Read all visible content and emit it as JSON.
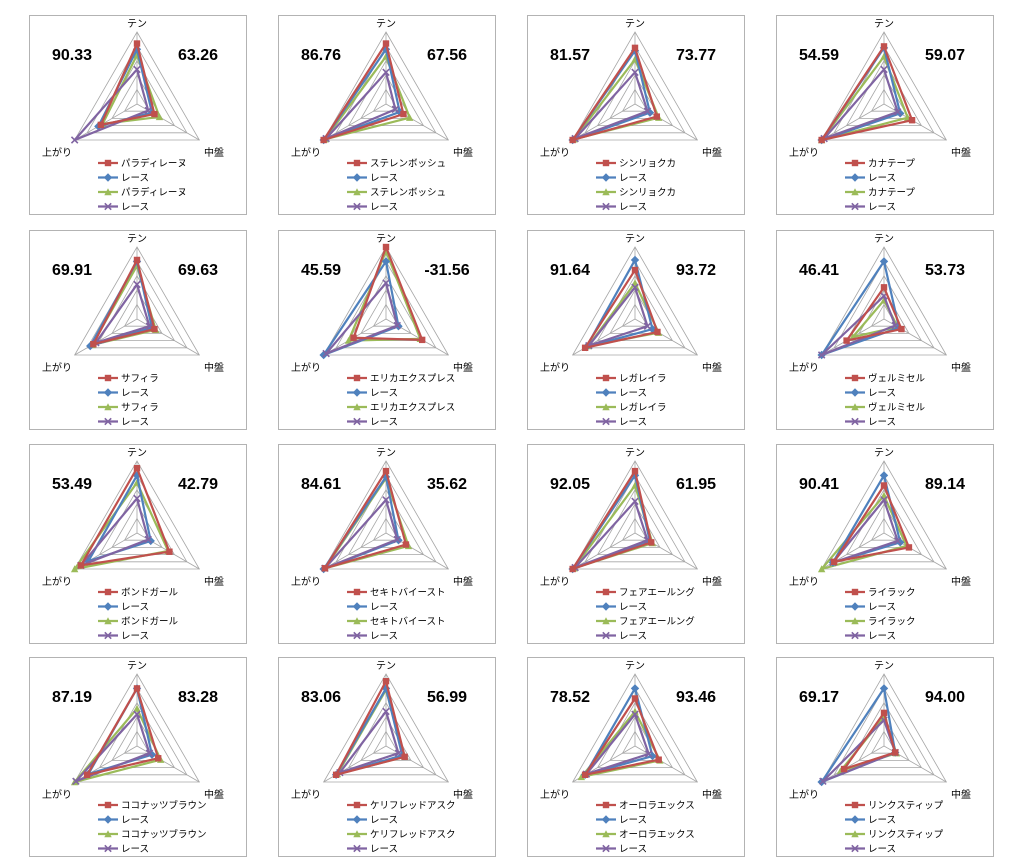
{
  "axes_labels": [
    "テン",
    "中盤",
    "上がり"
  ],
  "series_colors": [
    "#c0504d",
    "#4f81bd",
    "#9bbb59",
    "#8064a2"
  ],
  "series_markers": [
    "square",
    "diamond",
    "triangle",
    "cross"
  ],
  "chart_data": [
    {
      "type": "radar",
      "left_value": "90.33",
      "right_value": "63.26",
      "legend": [
        "パラディレーヌ",
        "レース",
        "パラディレーヌ",
        "レース"
      ],
      "axes": [
        "テン",
        "中盤",
        "上がり"
      ],
      "range": [
        0,
        100
      ],
      "series": [
        {
          "name": "パラディレーヌ",
          "values": [
            84,
            28,
            58
          ]
        },
        {
          "name": "レース",
          "values": [
            76,
            24,
            62
          ]
        },
        {
          "name": "パラディレーヌ",
          "values": [
            68,
            36,
            55
          ]
        },
        {
          "name": "レース",
          "values": [
            48,
            18,
            100
          ]
        }
      ]
    },
    {
      "type": "radar",
      "left_value": "86.76",
      "right_value": "67.56",
      "legend": [
        "ステレンボッシュ",
        "レース",
        "ステレンボッシュ",
        "レース"
      ],
      "axes": [
        "テン",
        "中盤",
        "上がり"
      ],
      "range": [
        0,
        100
      ],
      "series": [
        {
          "name": "ステレンボッシュ",
          "values": [
            84,
            28,
            100
          ]
        },
        {
          "name": "レース",
          "values": [
            76,
            22,
            100
          ]
        },
        {
          "name": "ステレンボッシュ",
          "values": [
            66,
            38,
            98
          ]
        },
        {
          "name": "レース",
          "values": [
            44,
            15,
            96
          ]
        }
      ]
    },
    {
      "type": "radar",
      "left_value": "81.57",
      "right_value": "73.77",
      "legend": [
        "シンリョクカ",
        "レース",
        "シンリョクカ",
        "レース"
      ],
      "axes": [
        "テン",
        "中盤",
        "上がり"
      ],
      "range": [
        0,
        100
      ],
      "series": [
        {
          "name": "シンリョクカ",
          "values": [
            78,
            35,
            100
          ]
        },
        {
          "name": "レース",
          "values": [
            74,
            24,
            100
          ]
        },
        {
          "name": "シンリョクカ",
          "values": [
            62,
            38,
            98
          ]
        },
        {
          "name": "レース",
          "values": [
            44,
            20,
            96
          ]
        }
      ]
    },
    {
      "type": "radar",
      "left_value": "54.59",
      "right_value": "59.07",
      "legend": [
        "カナテープ",
        "レース",
        "カナテープ",
        "レース"
      ],
      "axes": [
        "テン",
        "中盤",
        "上がり"
      ],
      "range": [
        0,
        100
      ],
      "series": [
        {
          "name": "カナテープ",
          "values": [
            80,
            45,
            100
          ]
        },
        {
          "name": "レース",
          "values": [
            78,
            26,
            100
          ]
        },
        {
          "name": "カナテープ",
          "values": [
            66,
            38,
            100
          ]
        },
        {
          "name": "レース",
          "values": [
            48,
            22,
            96
          ]
        }
      ]
    },
    {
      "type": "radar",
      "left_value": "69.91",
      "right_value": "69.63",
      "legend": [
        "サフィラ",
        "レース",
        "サフィラ",
        "レース"
      ],
      "axes": [
        "テン",
        "中盤",
        "上がり"
      ],
      "range": [
        0,
        100
      ],
      "series": [
        {
          "name": "サフィラ",
          "values": [
            82,
            28,
            70
          ]
        },
        {
          "name": "レース",
          "values": [
            80,
            24,
            75
          ]
        },
        {
          "name": "サフィラ",
          "values": [
            74,
            30,
            72
          ]
        },
        {
          "name": "レース",
          "values": [
            48,
            20,
            66
          ]
        }
      ]
    },
    {
      "type": "radar",
      "left_value": "45.59",
      "right_value": "-31.56",
      "legend": [
        "エリカエクスプレス",
        "レース",
        "エリカエクスプレス",
        "レース"
      ],
      "axes": [
        "テン",
        "中盤",
        "上がり"
      ],
      "range": [
        0,
        100
      ],
      "series": [
        {
          "name": "エリカエクスプレス",
          "values": [
            100,
            58,
            52
          ]
        },
        {
          "name": "レース",
          "values": [
            80,
            20,
            100
          ]
        },
        {
          "name": "エリカエクスプレス",
          "values": [
            94,
            55,
            60
          ]
        },
        {
          "name": "レース",
          "values": [
            50,
            18,
            96
          ]
        }
      ]
    },
    {
      "type": "radar",
      "left_value": "91.64",
      "right_value": "93.72",
      "legend": [
        "レガレイラ",
        "レース",
        "レガレイラ",
        "レース"
      ],
      "axes": [
        "テン",
        "中盤",
        "上がり"
      ],
      "range": [
        0,
        100
      ],
      "series": [
        {
          "name": "レガレイラ",
          "values": [
            68,
            36,
            80
          ]
        },
        {
          "name": "レース",
          "values": [
            82,
            28,
            78
          ]
        },
        {
          "name": "レガレイラ",
          "values": [
            50,
            38,
            75
          ]
        },
        {
          "name": "レース",
          "values": [
            44,
            20,
            74
          ]
        }
      ]
    },
    {
      "type": "radar",
      "left_value": "46.41",
      "right_value": "53.73",
      "legend": [
        "ヴェルミセル",
        "レース",
        "ヴェルミセル",
        "レース"
      ],
      "axes": [
        "テン",
        "中盤",
        "上がり"
      ],
      "range": [
        0,
        100
      ],
      "series": [
        {
          "name": "ヴェルミセル",
          "values": [
            44,
            28,
            60
          ]
        },
        {
          "name": "レース",
          "values": [
            80,
            24,
            100
          ]
        },
        {
          "name": "ヴェルミセル",
          "values": [
            26,
            22,
            50
          ]
        },
        {
          "name": "レース",
          "values": [
            32,
            18,
            100
          ]
        }
      ]
    },
    {
      "type": "radar",
      "left_value": "53.49",
      "right_value": "42.79",
      "legend": [
        "ボンドガール",
        "レース",
        "ボンドガール",
        "レース"
      ],
      "axes": [
        "テン",
        "中盤",
        "上がり"
      ],
      "range": [
        0,
        100
      ],
      "series": [
        {
          "name": "ボンドガール",
          "values": [
            90,
            52,
            90
          ]
        },
        {
          "name": "レース",
          "values": [
            80,
            22,
            78
          ]
        },
        {
          "name": "ボンドガール",
          "values": [
            70,
            50,
            100
          ]
        },
        {
          "name": "レース",
          "values": [
            48,
            18,
            90
          ]
        }
      ]
    },
    {
      "type": "radar",
      "left_value": "84.61",
      "right_value": "35.62",
      "legend": [
        "セキトバイースト",
        "レース",
        "セキトバイースト",
        "レース"
      ],
      "axes": [
        "テン",
        "中盤",
        "上がり"
      ],
      "range": [
        0,
        100
      ],
      "series": [
        {
          "name": "セキトバイースト",
          "values": [
            86,
            32,
            98
          ]
        },
        {
          "name": "レース",
          "values": [
            78,
            20,
            100
          ]
        },
        {
          "name": "セキトバイースト",
          "values": [
            76,
            36,
            98
          ]
        },
        {
          "name": "レース",
          "values": [
            46,
            18,
            98
          ]
        }
      ]
    },
    {
      "type": "radar",
      "left_value": "92.05",
      "right_value": "61.95",
      "legend": [
        "フェアエールング",
        "レース",
        "フェアエールング",
        "レース"
      ],
      "axes": [
        "テン",
        "中盤",
        "上がり"
      ],
      "range": [
        0,
        100
      ],
      "series": [
        {
          "name": "フェアエールング",
          "values": [
            86,
            26,
            100
          ]
        },
        {
          "name": "レース",
          "values": [
            80,
            24,
            100
          ]
        },
        {
          "name": "フェアエールング",
          "values": [
            66,
            28,
            98
          ]
        },
        {
          "name": "レース",
          "values": [
            44,
            20,
            96
          ]
        }
      ]
    },
    {
      "type": "radar",
      "left_value": "90.41",
      "right_value": "89.14",
      "legend": [
        "ライラック",
        "レース",
        "ライラック",
        "レース"
      ],
      "axes": [
        "テン",
        "中盤",
        "上がり"
      ],
      "range": [
        0,
        100
      ],
      "series": [
        {
          "name": "ライラック",
          "values": [
            66,
            40,
            80
          ]
        },
        {
          "name": "レース",
          "values": [
            80,
            26,
            82
          ]
        },
        {
          "name": "ライラック",
          "values": [
            52,
            36,
            100
          ]
        },
        {
          "name": "レース",
          "values": [
            46,
            22,
            82
          ]
        }
      ]
    },
    {
      "type": "radar",
      "left_value": "87.19",
      "right_value": "83.28",
      "legend": [
        "ココナッツブラウン",
        "レース",
        "ココナッツブラウン",
        "レース"
      ],
      "axes": [
        "テン",
        "中盤",
        "上がり"
      ],
      "range": [
        0,
        100
      ],
      "series": [
        {
          "name": "ココナッツブラウン",
          "values": [
            80,
            34,
            80
          ]
        },
        {
          "name": "レース",
          "values": [
            80,
            24,
            78
          ]
        },
        {
          "name": "ココナッツブラウン",
          "values": [
            52,
            38,
            100
          ]
        },
        {
          "name": "レース",
          "values": [
            44,
            20,
            98
          ]
        }
      ]
    },
    {
      "type": "radar",
      "left_value": "83.06",
      "right_value": "56.99",
      "legend": [
        "ケリフレッドアスク",
        "レース",
        "ケリフレッドアスク",
        "レース"
      ],
      "axes": [
        "テン",
        "中盤",
        "上がり"
      ],
      "range": [
        0,
        100
      ],
      "series": [
        {
          "name": "ケリフレッドアスク",
          "values": [
            90,
            30,
            80
          ]
        },
        {
          "name": "レース",
          "values": [
            80,
            26,
            80
          ]
        },
        {
          "name": "ケリフレッドアスク",
          "values": [
            78,
            30,
            78
          ]
        },
        {
          "name": "レース",
          "values": [
            48,
            20,
            74
          ]
        }
      ]
    },
    {
      "type": "radar",
      "left_value": "78.52",
      "right_value": "93.46",
      "legend": [
        "オーロラエックス",
        "レース",
        "オーロラエックス",
        "レース"
      ],
      "axes": [
        "テン",
        "中盤",
        "上がり"
      ],
      "range": [
        0,
        100
      ],
      "series": [
        {
          "name": "オーロラエックス",
          "values": [
            66,
            38,
            80
          ]
        },
        {
          "name": "レース",
          "values": [
            80,
            28,
            80
          ]
        },
        {
          "name": "オーロラエックス",
          "values": [
            48,
            40,
            86
          ]
        },
        {
          "name": "レース",
          "values": [
            44,
            22,
            78
          ]
        }
      ]
    },
    {
      "type": "radar",
      "left_value": "69.17",
      "right_value": "94.00",
      "legend": [
        "リンクスティップ",
        "レース",
        "リンクスティップ",
        "レース"
      ],
      "axes": [
        "テン",
        "中盤",
        "上がり"
      ],
      "range": [
        0,
        100
      ],
      "series": [
        {
          "name": "リンクスティップ",
          "values": [
            46,
            18,
            64
          ]
        },
        {
          "name": "レース",
          "values": [
            80,
            18,
            100
          ]
        },
        {
          "name": "リンクスティップ",
          "values": [
            40,
            20,
            70
          ]
        },
        {
          "name": "レース",
          "values": [
            36,
            18,
            98
          ]
        }
      ]
    }
  ]
}
